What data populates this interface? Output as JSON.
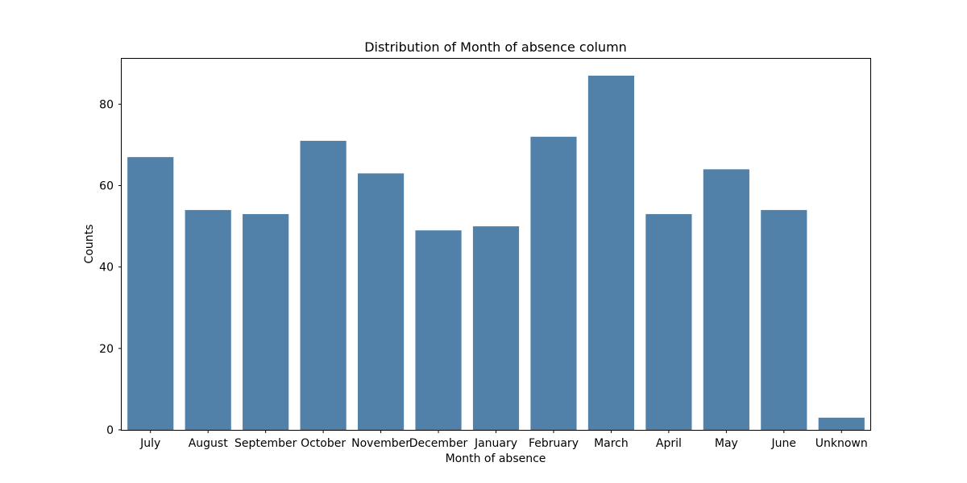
{
  "chart_data": {
    "type": "bar",
    "title": "Distribution of Month of absence column",
    "xlabel": "Month of absence",
    "ylabel": "Counts",
    "categories": [
      "July",
      "August",
      "September",
      "October",
      "November",
      "December",
      "January",
      "February",
      "March",
      "April",
      "May",
      "June",
      "Unknown"
    ],
    "values": [
      67,
      54,
      53,
      71,
      63,
      49,
      50,
      72,
      87,
      53,
      64,
      54,
      3
    ],
    "ylim": [
      0,
      91.35
    ],
    "yticks": [
      0,
      20,
      40,
      60,
      80
    ],
    "grid": false,
    "bar_color": "#5181a8"
  }
}
